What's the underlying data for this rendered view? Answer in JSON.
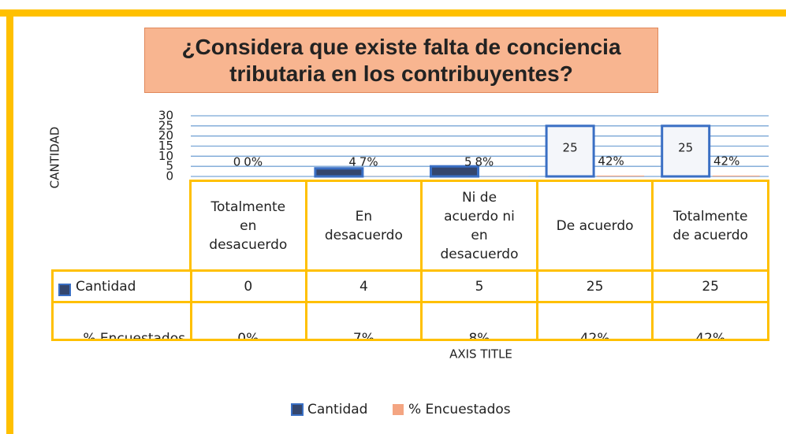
{
  "chart_data": {
    "type": "bar",
    "title": "¿Considera que existe falta de conciencia tributaria en los contribuyentes?",
    "y_label": "CANTIDAD",
    "x_label": "AXIS TITLE",
    "categories": [
      "Totalmente en desacuerdo",
      "En desacuerdo",
      "Ni de acuerdo ni en desacuerdo",
      "De acuerdo",
      "Totalmente de acuerdo"
    ],
    "series": [
      {
        "name": "Cantidad",
        "color": "#34466e",
        "values": [
          0,
          4,
          5,
          25,
          25
        ]
      },
      {
        "name": "% Encuestados",
        "color": "#f4a582",
        "values": [
          0,
          0.07,
          0.08,
          0.42,
          0.42
        ],
        "value_labels": [
          "0%",
          "7%",
          "8%",
          "42%",
          "42%"
        ]
      }
    ],
    "ylim": [
      0,
      30
    ],
    "yticks": [
      0,
      5,
      10,
      15,
      20,
      25,
      30
    ],
    "grid": true
  }
}
